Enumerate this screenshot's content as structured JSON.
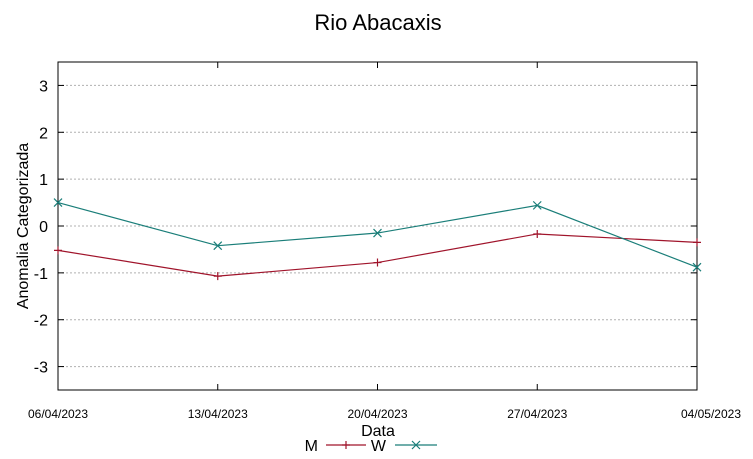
{
  "chart_data": {
    "type": "line",
    "title": "Rio Abacaxis",
    "xlabel": "Data",
    "ylabel": "Anomalia Categorizada",
    "x": [
      "06/04/2023",
      "13/04/2023",
      "20/04/2023",
      "27/04/2023",
      "04/05/2023"
    ],
    "ylim": [
      -3.5,
      3.5
    ],
    "yticks": [
      3,
      2,
      1,
      0,
      -1,
      -2,
      -3
    ],
    "grid": true,
    "legend_position": "bottom",
    "series": [
      {
        "name": "M",
        "color": "#a0142b",
        "marker": "plus",
        "values": [
          -0.52,
          -1.07,
          -0.78,
          -0.17,
          -0.35
        ]
      },
      {
        "name": "W",
        "color": "#1a7e79",
        "marker": "x",
        "values": [
          0.5,
          -0.42,
          -0.15,
          0.44,
          -0.88
        ]
      }
    ]
  }
}
